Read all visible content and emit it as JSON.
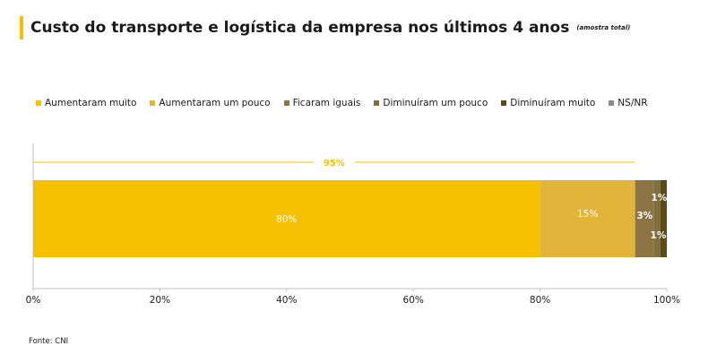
{
  "title": "Custo do transporte e logística da empresa nos últimos 4 anos",
  "subtitle": "(amostra total)",
  "source": "Fonte: CNI",
  "colors": {
    "accent": "#f5c000",
    "bracket": "#f5c000",
    "axis": "#bfbfbf"
  },
  "chart_data": {
    "type": "bar",
    "orientation": "horizontal",
    "stacked": true,
    "categories": [
      ""
    ],
    "series": [
      {
        "name": "Aumentaram muito",
        "values": [
          80
        ],
        "label": "80%",
        "color": "#f5c000"
      },
      {
        "name": "Aumentaram um pouco",
        "values": [
          15
        ],
        "label": "15%",
        "color": "#e2b43a"
      },
      {
        "name": "Ficaram iguais",
        "values": [
          3
        ],
        "label": "3%",
        "color": "#8c7445"
      },
      {
        "name": "Diminuíram um pouco",
        "values": [
          1
        ],
        "label": "1%",
        "color": "#7d6f3e"
      },
      {
        "name": "Diminuíram muito",
        "values": [
          1
        ],
        "label": "1%",
        "color": "#5e4a12"
      },
      {
        "name": "NS/NR",
        "values": [
          0
        ],
        "label": "",
        "color": "#8c8c8c"
      }
    ],
    "annotation": {
      "label": "95%",
      "value": 95
    },
    "xlim": [
      0,
      100
    ],
    "xticks": [
      0,
      20,
      40,
      60,
      80,
      100
    ],
    "tick_labels": [
      "0%",
      "20%",
      "40%",
      "60%",
      "80%",
      "100%"
    ],
    "xlabel": "",
    "ylabel": "",
    "grid": false,
    "legend_position": "top"
  }
}
